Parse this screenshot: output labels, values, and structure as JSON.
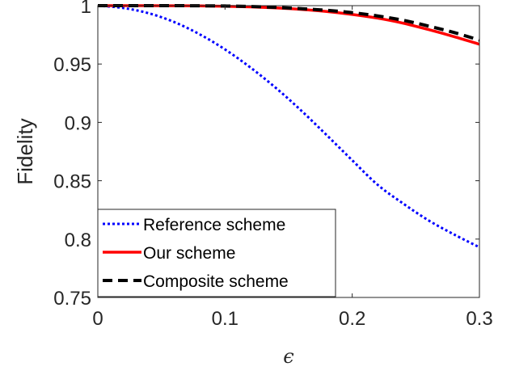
{
  "chart_data": {
    "type": "line",
    "xlabel": "ϵ",
    "ylabel": "Fidelity",
    "xlim": [
      0,
      0.3
    ],
    "ylim": [
      0.75,
      1.0
    ],
    "x_ticks": [
      "0",
      "0.1",
      "0.2",
      "0.3"
    ],
    "x_tick_values": [
      0,
      0.1,
      0.2,
      0.3
    ],
    "y_ticks": [
      "0.75",
      "0.8",
      "0.85",
      "0.9",
      "0.95",
      "1"
    ],
    "y_tick_values": [
      0.75,
      0.8,
      0.85,
      0.9,
      0.95,
      1.0
    ],
    "grid": false,
    "legend_position": "bottom-left",
    "x": [
      0,
      0.02,
      0.04,
      0.06,
      0.08,
      0.1,
      0.12,
      0.14,
      0.16,
      0.18,
      0.2,
      0.22,
      0.24,
      0.26,
      0.28,
      0.3
    ],
    "series": [
      {
        "name": "Reference scheme",
        "color": "#0000ff",
        "style": "dotted",
        "values": [
          1.0,
          0.998,
          0.9935,
          0.986,
          0.9755,
          0.9625,
          0.947,
          0.9295,
          0.91,
          0.889,
          0.8675,
          0.8465,
          0.8305,
          0.816,
          0.804,
          0.793
        ]
      },
      {
        "name": "Our scheme",
        "color": "#ff0000",
        "style": "solid",
        "values": [
          1.0,
          1.0,
          1.0,
          0.9999,
          0.9998,
          0.9995,
          0.999,
          0.9981,
          0.9968,
          0.995,
          0.9925,
          0.9893,
          0.985,
          0.9795,
          0.9735,
          0.967
        ]
      },
      {
        "name": "Composite scheme",
        "color": "#000000",
        "style": "dashed",
        "values": [
          1.0,
          1.0,
          1.0,
          1.0,
          0.9999,
          0.9997,
          0.9993,
          0.9985,
          0.9974,
          0.996,
          0.994,
          0.9912,
          0.9875,
          0.9825,
          0.977,
          0.9705
        ]
      }
    ]
  }
}
